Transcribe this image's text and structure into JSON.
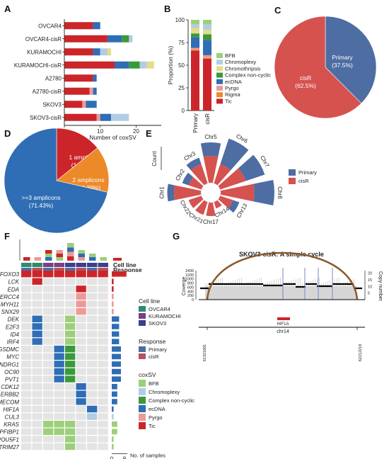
{
  "panels": {
    "A": "A",
    "B": "B",
    "C": "C",
    "D": "D",
    "E": "E",
    "F": "F",
    "G": "G"
  },
  "colors": {
    "Tic": "#cc2529",
    "Rigma": "#ec8a2a",
    "Pyrgo": "#ec9a96",
    "ecDNA": "#2f6db5",
    "Complex non-cyclic": "#3a9a3a",
    "Chromothripsis": "#e6dc88",
    "Chromoplexy": "#b0cde6",
    "BFB": "#9ccf7a",
    "Primary": "#4e6da3",
    "cisR": "#d5524f",
    "bar_purple": "#5b59a5",
    "tick_gray": "#999999",
    "arc": "#8a5a2b"
  },
  "chart_data": [
    {
      "type": "bar",
      "panel": "A",
      "orientation": "horizontal",
      "xlabel": "Number of coxSV",
      "categories": [
        "OVCAR4",
        "OVCAR4-cisR",
        "KURAMOCHI",
        "KURAMOCHI-cisR",
        "A2780",
        "A2780-cisR",
        "SKOV3",
        "SKOV3-cisR"
      ],
      "xticks": [
        0,
        10,
        20
      ],
      "xlim": [
        0,
        27
      ],
      "series": [
        {
          "name": "Tic",
          "values": [
            8,
            12,
            8,
            14,
            8,
            7,
            5,
            9
          ]
        },
        {
          "name": "Pyrgo",
          "values": [
            0,
            0,
            0,
            0,
            0,
            1,
            1,
            1
          ]
        },
        {
          "name": "ecDNA",
          "values": [
            2,
            4,
            2,
            4,
            1,
            1,
            3,
            3
          ]
        },
        {
          "name": "Complex non-cyclic",
          "values": [
            0,
            2,
            0,
            3,
            0,
            0,
            0,
            0
          ]
        },
        {
          "name": "Chromoplexy",
          "values": [
            0,
            1,
            2,
            2,
            0,
            0,
            0,
            5
          ]
        },
        {
          "name": "Chromothripsis",
          "values": [
            0,
            0,
            1,
            2,
            0,
            0,
            0,
            0
          ]
        },
        {
          "name": "BFB",
          "values": [
            0,
            0,
            0,
            0,
            0,
            0,
            0,
            0
          ]
        }
      ]
    },
    {
      "type": "bar",
      "panel": "B",
      "stacked": true,
      "ylabel": "Proportion (%)",
      "categories": [
        "Primary",
        "cisR"
      ],
      "yticks": [
        0,
        25,
        50,
        75,
        100
      ],
      "ylim": [
        0,
        100
      ],
      "legend": [
        "BFB",
        "Chromoplexy",
        "Chromothripsis",
        "Complex non-cyclic",
        "ecDNA",
        "Pyrgo",
        "Rigma",
        "Tic"
      ],
      "series": [
        {
          "name": "Tic",
          "values": [
            66,
            57
          ]
        },
        {
          "name": "Rigma",
          "values": [
            1,
            1
          ]
        },
        {
          "name": "Pyrgo",
          "values": [
            2,
            3
          ]
        },
        {
          "name": "ecDNA",
          "values": [
            12,
            17
          ]
        },
        {
          "name": "Complex non-cyclic",
          "values": [
            4,
            6
          ]
        },
        {
          "name": "Chromothripsis",
          "values": [
            6,
            5
          ]
        },
        {
          "name": "Chromoplexy",
          "values": [
            4,
            6
          ]
        },
        {
          "name": "BFB",
          "values": [
            5,
            5
          ]
        }
      ]
    },
    {
      "type": "pie",
      "panel": "C",
      "labels": [
        "Primary",
        "cisR"
      ],
      "texts": [
        "Primary\n(37.5%)",
        "cisR\n(62.5%)"
      ],
      "values": [
        37.5,
        62.5
      ]
    },
    {
      "type": "pie",
      "panel": "D",
      "labels": [
        "1 amplicon",
        "2 amplicons",
        ">=3 amplicons"
      ],
      "texts": [
        "1 amplicon\n(14.29%)",
        "2 amplicons\n(14.29%)",
        ">=3 amplicons\n(71.43%)"
      ],
      "values": [
        14.29,
        14.29,
        71.43
      ]
    },
    {
      "type": "bar",
      "panel": "E",
      "polar": true,
      "ylabel": "Count",
      "legend": [
        "Primary",
        "cisR"
      ],
      "categories": [
        "Chr1",
        "Chr2",
        "Chr3",
        "Chr5",
        "Chr6",
        "Chr7",
        "Chr8",
        "Chr13",
        "Chr14",
        "Chr17",
        "Chr21",
        "Chr22"
      ],
      "series": [
        {
          "name": "cisR",
          "values": [
            4,
            2,
            3,
            4,
            3,
            4,
            5,
            2,
            1,
            2,
            2,
            2
          ]
        },
        {
          "name": "Primary",
          "values": [
            1,
            1,
            1,
            2,
            4,
            3,
            3,
            1,
            0,
            0,
            0,
            0
          ]
        }
      ]
    }
  ],
  "panelF": {
    "legend_rows": [
      "Cell line",
      "Response"
    ],
    "cell_line_title": "Cell line",
    "cell_lines": [
      "OVCAR4",
      "KURAMOCHI",
      "SKOV3"
    ],
    "response_title": "Response",
    "responses": [
      "Primary",
      "cisR"
    ],
    "coxsv_title": "coxSV",
    "coxsv": [
      "BFB",
      "Chromoplexy",
      "Complex non-cyclic",
      "ecDNA",
      "Pyrgo",
      "Tic"
    ],
    "samples_label": "No. of samples",
    "genes": [
      "FOXO3",
      "LCK",
      "EDA",
      "ERCC4",
      "MYH11",
      "SNX29",
      "DEK",
      "E2F3",
      "ID4",
      "IRF4",
      "GSDMC",
      "MYC",
      "NDRG1",
      "OC90",
      "PVT1",
      "CDK12",
      "ERBB2",
      "MECOM",
      "HIF1A",
      "CUL3",
      "KRAS",
      "PPFIBP1",
      "POU5F1",
      "TRIM27"
    ],
    "cell_line_row": [
      "OVCAR4",
      "OVCAR4",
      "KURAMOCHI",
      "KURAMOCHI",
      "SKOV3",
      "SKOV3",
      "SKOV3",
      "SKOV3"
    ],
    "response_row": [
      "Primary",
      "cisR",
      "Primary",
      "cisR",
      "Primary",
      "cisR",
      "Primary",
      "cisR"
    ],
    "top_bars": [
      1,
      1,
      3,
      3,
      5,
      3,
      2,
      1
    ],
    "matrix": [
      [
        "Tic",
        "Tic",
        "Tic",
        "Tic",
        "Tic",
        "Tic",
        "Tic",
        "Tic"
      ],
      [
        "",
        "Tic",
        "",
        "",
        "",
        "",
        "",
        ""
      ],
      [
        "",
        "",
        "",
        "",
        "",
        "Tic",
        "",
        ""
      ],
      [
        "",
        "",
        "",
        "",
        "",
        "Pyrgo",
        "",
        ""
      ],
      [
        "",
        "",
        "",
        "",
        "",
        "Pyrgo",
        "",
        ""
      ],
      [
        "",
        "",
        "",
        "",
        "",
        "Pyrgo",
        "",
        ""
      ],
      [
        "",
        "ecDNA",
        "",
        "",
        "BFB",
        "",
        "",
        ""
      ],
      [
        "",
        "ecDNA",
        "",
        "",
        "BFB",
        "",
        "",
        ""
      ],
      [
        "",
        "ecDNA",
        "",
        "",
        "BFB",
        "",
        "",
        ""
      ],
      [
        "",
        "ecDNA",
        "",
        "",
        "BFB",
        "",
        "",
        ""
      ],
      [
        "",
        "",
        "",
        "ecDNA",
        "Complex non-cyclic",
        "",
        "",
        ""
      ],
      [
        "",
        "",
        "",
        "ecDNA",
        "Complex non-cyclic",
        "",
        "",
        ""
      ],
      [
        "",
        "",
        "",
        "ecDNA",
        "Complex non-cyclic",
        "",
        "",
        ""
      ],
      [
        "",
        "",
        "",
        "ecDNA",
        "Complex non-cyclic",
        "",
        "",
        ""
      ],
      [
        "",
        "",
        "",
        "ecDNA",
        "Complex non-cyclic",
        "",
        "",
        ""
      ],
      [
        "",
        "",
        "",
        "",
        "",
        "ecDNA",
        "",
        ""
      ],
      [
        "",
        "",
        "",
        "",
        "",
        "ecDNA",
        "",
        ""
      ],
      [
        "",
        "",
        "",
        "",
        "",
        "ecDNA",
        "",
        ""
      ],
      [
        "",
        "",
        "",
        "",
        "",
        "",
        "ecDNA",
        ""
      ],
      [
        "",
        "",
        "",
        "",
        "",
        "",
        "Chromoplexy",
        ""
      ],
      [
        "",
        "",
        "BFB",
        "BFB",
        "BFB",
        "",
        "",
        ""
      ],
      [
        "",
        "",
        "BFB",
        "BFB",
        "BFB",
        "",
        "",
        ""
      ],
      [
        "",
        "",
        "",
        "",
        "BFB",
        "",
        "",
        ""
      ],
      [
        "",
        "",
        "",
        "",
        "BFB",
        "",
        "",
        ""
      ]
    ],
    "right_counts": [
      8,
      1,
      1,
      1,
      1,
      1,
      4,
      4,
      4,
      4,
      5,
      5,
      5,
      5,
      5,
      3,
      3,
      3,
      1,
      1,
      3,
      3,
      1,
      1
    ],
    "axis_ticks": [
      "0",
      "8"
    ]
  },
  "panelG": {
    "title": "SKOV3-cisR: A simple cycle",
    "left_label": "Coverge",
    "right_label": "Copy number",
    "left_ticks": [
      0,
      200,
      400,
      600,
      800,
      1000,
      1200,
      1400
    ],
    "right_ticks": [
      5,
      10,
      15,
      20
    ],
    "gene": "HIF1A",
    "chrom": "chr14",
    "start": "61321681",
    "end": "62212218"
  }
}
